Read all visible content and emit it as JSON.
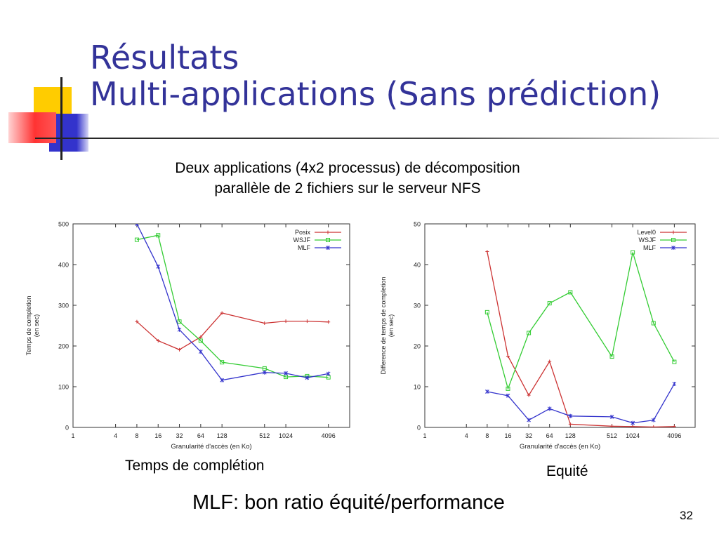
{
  "slide": {
    "title_line1": "Résultats",
    "title_line2": "Multi-applications (Sans prédiction)",
    "subtitle_line1": "Deux applications (4x2 processus) de décomposition",
    "subtitle_line2": "parallèle de 2 fichiers sur le serveur NFS",
    "caption_left": "Temps de complétion",
    "caption_right": "Equité",
    "conclusion": "MLF: bon ratio équité/performance",
    "page_number": "32"
  },
  "chart_data": [
    {
      "type": "line",
      "xlabel": "Granularité d'accès (en Ko)",
      "ylabel": [
        "Temps de completion",
        "(en sec)"
      ],
      "x_scale": "log2",
      "x_ticks": [
        1,
        4,
        8,
        16,
        32,
        64,
        128,
        512,
        1024,
        4096
      ],
      "x_range": [
        1,
        8192
      ],
      "ylim": [
        0,
        500
      ],
      "y_ticks": [
        0,
        100,
        200,
        300,
        400,
        500
      ],
      "legend_position": "top-right",
      "series": [
        {
          "name": "Posix",
          "color": "#cc3333",
          "marker": "plus",
          "x": [
            8,
            16,
            32,
            64,
            128,
            512,
            1024,
            2048,
            4096
          ],
          "values": [
            260,
            213,
            191,
            222,
            281,
            256,
            261,
            261,
            259
          ]
        },
        {
          "name": "WSJF",
          "color": "#33cc33",
          "marker": "square",
          "x": [
            8,
            16,
            32,
            64,
            128,
            512,
            1024,
            2048,
            4096
          ],
          "values": [
            461,
            472,
            260,
            213,
            160,
            145,
            124,
            126,
            123
          ]
        },
        {
          "name": "MLF",
          "color": "#3333cc",
          "marker": "star",
          "x": [
            8,
            16,
            32,
            64,
            128,
            512,
            1024,
            2048,
            4096
          ],
          "values": [
            505,
            395,
            240,
            186,
            116,
            135,
            133,
            122,
            132
          ]
        }
      ]
    },
    {
      "type": "line",
      "xlabel": "Granularité d'accès (en Ko)",
      "ylabel": [
        "Difference de temps de completion",
        "(en sec)"
      ],
      "x_scale": "log2",
      "x_ticks": [
        1,
        4,
        8,
        16,
        32,
        64,
        128,
        512,
        1024,
        4096
      ],
      "x_range": [
        1,
        8192
      ],
      "ylim": [
        0,
        50
      ],
      "y_ticks": [
        0,
        10,
        20,
        30,
        40,
        50
      ],
      "legend_position": "top-right",
      "series": [
        {
          "name": "Level0",
          "color": "#cc3333",
          "marker": "plus",
          "x": [
            8,
            16,
            32,
            64,
            128,
            512,
            1024,
            2048,
            4096
          ],
          "values": [
            43.2,
            17.5,
            7.9,
            16.2,
            0.8,
            0.3,
            0.2,
            0.1,
            0.2
          ]
        },
        {
          "name": "WSJF",
          "color": "#33cc33",
          "marker": "square",
          "x": [
            8,
            16,
            32,
            64,
            128,
            512,
            1024,
            2048,
            4096
          ],
          "values": [
            28.3,
            9.5,
            23.2,
            30.5,
            33.2,
            17.4,
            43.0,
            25.6,
            16.1
          ]
        },
        {
          "name": "MLF",
          "color": "#3333cc",
          "marker": "star",
          "x": [
            8,
            16,
            32,
            64,
            128,
            512,
            1024,
            2048,
            4096
          ],
          "values": [
            8.8,
            7.8,
            1.8,
            4.6,
            2.8,
            2.6,
            1.1,
            1.8,
            10.7
          ]
        }
      ]
    }
  ]
}
